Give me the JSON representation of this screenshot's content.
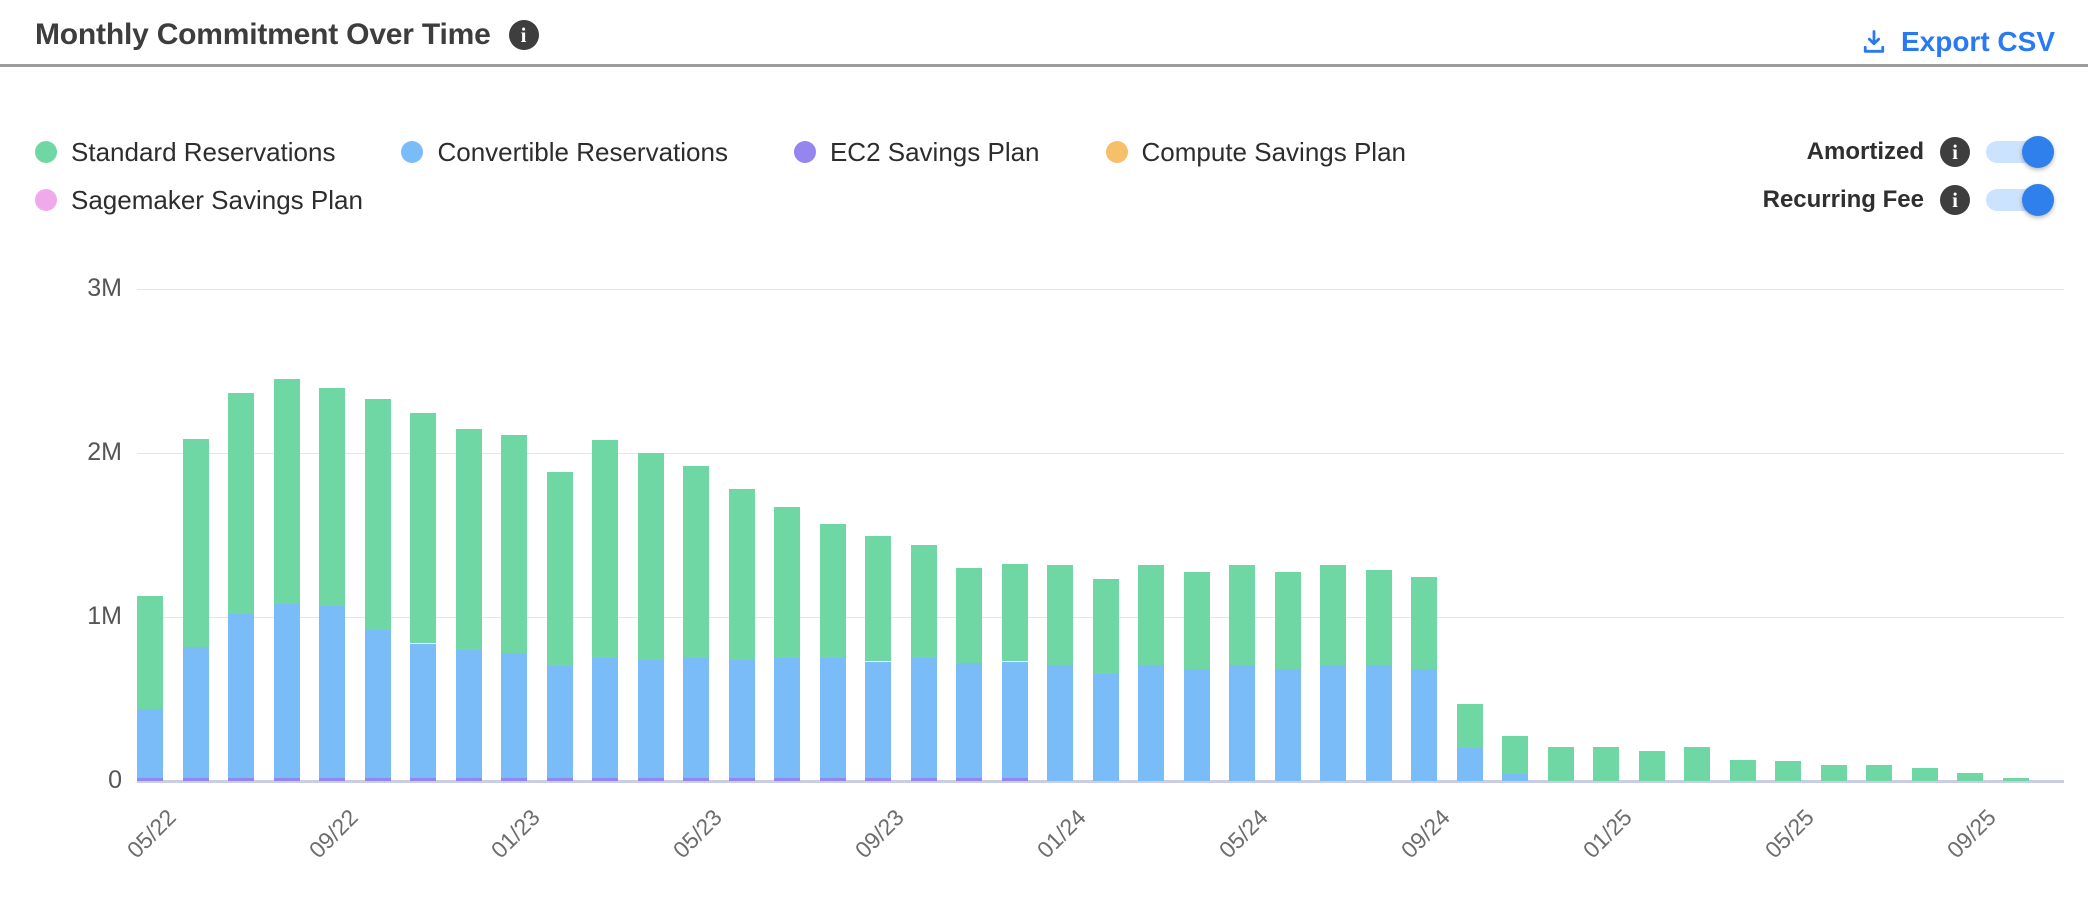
{
  "header": {
    "title": "Monthly Commitment Over Time",
    "info_icon": "info-icon",
    "export_label": "Export CSV",
    "export_color": "#2979f2"
  },
  "legend": {
    "rows": [
      [
        {
          "label": "Standard Reservations",
          "color": "#6fd7a3"
        },
        {
          "label": "Convertible Reservations",
          "color": "#79bcf8"
        },
        {
          "label": "EC2 Savings Plan",
          "color": "#9486ee"
        },
        {
          "label": "Compute Savings Plan",
          "color": "#f6bf69"
        }
      ],
      [
        {
          "label": "Sagemaker Savings Plan",
          "color": "#f0a9eb"
        }
      ]
    ]
  },
  "toggles": [
    {
      "label": "Amortized",
      "state": "on"
    },
    {
      "label": "Recurring Fee",
      "state": "on"
    }
  ],
  "toggle_colors": {
    "track": "#cbe3fc",
    "knob": "#2f80ed"
  },
  "chart_data": {
    "type": "bar",
    "stacked": true,
    "title": "Monthly Commitment Over Time",
    "xlabel": "",
    "ylabel": "",
    "value_unit": "M",
    "ylim": [
      0,
      3
    ],
    "grid": "horizontal",
    "legend_position": "top-left",
    "y_ticks": [
      {
        "label": "3M",
        "value": 3
      },
      {
        "label": "2M",
        "value": 2
      },
      {
        "label": "1M",
        "value": 1
      },
      {
        "label": "0",
        "value": 0
      }
    ],
    "x_tick_interval": 4,
    "categories": [
      "05/22",
      "06/22",
      "07/22",
      "08/22",
      "09/22",
      "10/22",
      "11/22",
      "12/22",
      "01/23",
      "02/23",
      "03/23",
      "04/23",
      "05/23",
      "06/23",
      "07/23",
      "08/23",
      "09/23",
      "10/23",
      "11/23",
      "12/23",
      "01/24",
      "02/24",
      "03/24",
      "04/24",
      "05/24",
      "06/24",
      "07/24",
      "08/24",
      "09/24",
      "10/24",
      "11/24",
      "12/24",
      "01/25",
      "02/25",
      "03/25",
      "04/25",
      "05/25",
      "06/25",
      "07/25",
      "08/25",
      "09/25",
      "10/25"
    ],
    "series": [
      {
        "name": "EC2 Savings Plan",
        "color": "#9486ee",
        "values": [
          0.02,
          0.02,
          0.02,
          0.02,
          0.02,
          0.02,
          0.02,
          0.02,
          0.02,
          0.02,
          0.02,
          0.02,
          0.02,
          0.02,
          0.02,
          0.02,
          0.02,
          0.02,
          0.02,
          0.02,
          0,
          0,
          0,
          0,
          0,
          0,
          0,
          0,
          0,
          0,
          0,
          0,
          0,
          0,
          0,
          0,
          0,
          0,
          0,
          0,
          0,
          0
        ]
      },
      {
        "name": "Convertible Reservations",
        "color": "#79bcf8",
        "values": [
          0.42,
          0.8,
          1.0,
          1.06,
          1.05,
          0.9,
          0.82,
          0.78,
          0.76,
          0.68,
          0.73,
          0.72,
          0.73,
          0.72,
          0.73,
          0.73,
          0.71,
          0.73,
          0.7,
          0.71,
          0.71,
          0.65,
          0.71,
          0.68,
          0.71,
          0.68,
          0.71,
          0.71,
          0.68,
          0.2,
          0.04,
          0,
          0,
          0,
          0,
          0,
          0,
          0,
          0,
          0,
          0,
          0
        ]
      },
      {
        "name": "Standard Reservations",
        "color": "#6fd7a3",
        "values": [
          0.69,
          1.27,
          1.35,
          1.37,
          1.33,
          1.41,
          1.4,
          1.35,
          1.33,
          1.18,
          1.33,
          1.26,
          1.17,
          1.04,
          0.92,
          0.82,
          0.76,
          0.69,
          0.58,
          0.59,
          0.61,
          0.58,
          0.61,
          0.59,
          0.61,
          0.59,
          0.61,
          0.58,
          0.56,
          0.27,
          0.23,
          0.21,
          0.21,
          0.18,
          0.21,
          0.13,
          0.12,
          0.1,
          0.1,
          0.08,
          0.05,
          0.02
        ]
      },
      {
        "name": "Compute Savings Plan",
        "color": "#f6bf69",
        "values": [
          0,
          0,
          0,
          0,
          0,
          0,
          0,
          0,
          0,
          0,
          0,
          0,
          0,
          0,
          0,
          0,
          0,
          0,
          0,
          0,
          0,
          0,
          0,
          0,
          0,
          0,
          0,
          0,
          0,
          0,
          0,
          0,
          0,
          0,
          0,
          0,
          0,
          0,
          0,
          0,
          0,
          0
        ]
      },
      {
        "name": "Sagemaker Savings Plan",
        "color": "#f0a9eb",
        "values": [
          0,
          0,
          0,
          0,
          0,
          0,
          0,
          0,
          0,
          0,
          0,
          0,
          0,
          0,
          0,
          0,
          0,
          0,
          0,
          0,
          0,
          0,
          0,
          0,
          0,
          0,
          0,
          0,
          0,
          0,
          0,
          0,
          0,
          0,
          0,
          0,
          0,
          0,
          0,
          0,
          0,
          0
        ]
      }
    ]
  }
}
